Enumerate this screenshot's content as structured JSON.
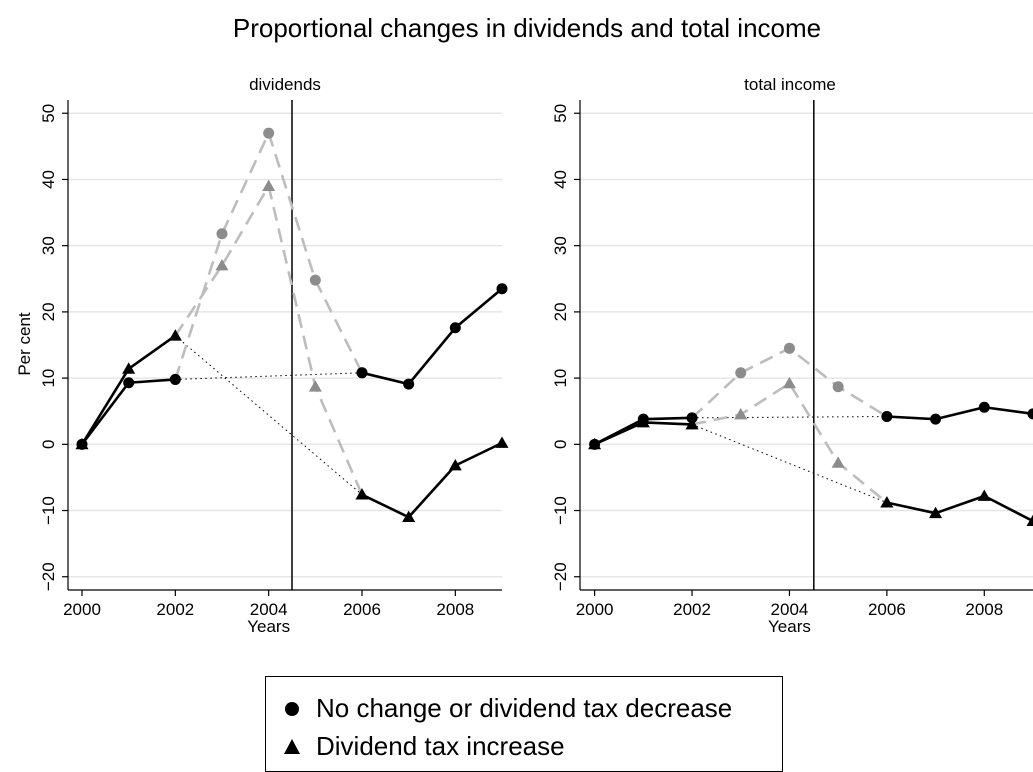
{
  "chart_data": {
    "type": "line",
    "title": "Proportional changes in dividends and total income",
    "ylabel": "Per cent",
    "xlabel": "Years",
    "xlim": [
      1999.7,
      2009.0
    ],
    "ylim": [
      -22,
      52
    ],
    "xticks": [
      2000,
      2002,
      2004,
      2006,
      2008
    ],
    "yticks": [
      -20,
      -10,
      0,
      10,
      20,
      30,
      40,
      50
    ],
    "vline": 2004.5,
    "grid": true,
    "legend_position": "bottom",
    "legend": [
      {
        "label": "No change or dividend tax decrease",
        "marker": "circle"
      },
      {
        "label": "Dividend tax increase",
        "marker": "triangle"
      }
    ],
    "panels": [
      {
        "title": "dividends",
        "series": [
          {
            "group": "No change or dividend tax decrease",
            "style": "solid",
            "points": [
              [
                2000,
                0
              ],
              [
                2001,
                9.3
              ],
              [
                2002,
                9.8
              ]
            ]
          },
          {
            "group": "No change or dividend tax decrease",
            "style": "solid",
            "points": [
              [
                2006,
                10.8
              ],
              [
                2007,
                9.1
              ],
              [
                2008,
                17.6
              ],
              [
                2009,
                23.5
              ]
            ]
          },
          {
            "group": "Dividend tax increase",
            "style": "solid",
            "points": [
              [
                2000,
                0
              ],
              [
                2001,
                11.4
              ],
              [
                2002,
                16.4
              ]
            ]
          },
          {
            "group": "Dividend tax increase",
            "style": "solid",
            "points": [
              [
                2006,
                -7.6
              ],
              [
                2007,
                -11
              ],
              [
                2008,
                -3.2
              ],
              [
                2009,
                0.2
              ]
            ]
          },
          {
            "group": "No change or dividend tax decrease",
            "style": "dashed",
            "points": [
              [
                2002,
                9.8
              ],
              [
                2003,
                31.8
              ],
              [
                2004,
                47
              ],
              [
                2005,
                24.8
              ],
              [
                2006,
                10.8
              ]
            ]
          },
          {
            "group": "Dividend tax increase",
            "style": "dashed",
            "points": [
              [
                2002,
                16.4
              ],
              [
                2003,
                27
              ],
              [
                2004,
                39
              ],
              [
                2005,
                8.7
              ],
              [
                2006,
                -7.6
              ]
            ]
          },
          {
            "group": "No change or dividend tax decrease",
            "style": "dotted",
            "points": [
              [
                2002,
                9.8
              ],
              [
                2006,
                10.8
              ]
            ]
          },
          {
            "group": "Dividend tax increase",
            "style": "dotted",
            "points": [
              [
                2002,
                16.4
              ],
              [
                2006,
                -7.6
              ]
            ]
          }
        ]
      },
      {
        "title": "total income",
        "series": [
          {
            "group": "No change or dividend tax decrease",
            "style": "solid",
            "points": [
              [
                2000,
                0
              ],
              [
                2001,
                3.8
              ],
              [
                2002,
                4
              ]
            ]
          },
          {
            "group": "No change or dividend tax decrease",
            "style": "solid",
            "points": [
              [
                2006,
                4.2
              ],
              [
                2007,
                3.8
              ],
              [
                2008,
                5.6
              ],
              [
                2009,
                4.6
              ]
            ]
          },
          {
            "group": "Dividend tax increase",
            "style": "solid",
            "points": [
              [
                2000,
                0
              ],
              [
                2001,
                3.3
              ],
              [
                2002,
                3
              ]
            ]
          },
          {
            "group": "Dividend tax increase",
            "style": "solid",
            "points": [
              [
                2006,
                -8.8
              ],
              [
                2007,
                -10.4
              ],
              [
                2008,
                -7.8
              ],
              [
                2009,
                -11.6
              ]
            ]
          },
          {
            "group": "No change or dividend tax decrease",
            "style": "dashed",
            "points": [
              [
                2002,
                4
              ],
              [
                2003,
                10.8
              ],
              [
                2004,
                14.5
              ],
              [
                2005,
                8.7
              ],
              [
                2006,
                4.2
              ]
            ]
          },
          {
            "group": "Dividend tax increase",
            "style": "dashed",
            "points": [
              [
                2002,
                3
              ],
              [
                2003,
                4.5
              ],
              [
                2004,
                9.2
              ],
              [
                2005,
                -2.8
              ],
              [
                2006,
                -8.8
              ]
            ]
          },
          {
            "group": "No change or dividend tax decrease",
            "style": "dotted",
            "points": [
              [
                2002,
                4
              ],
              [
                2006,
                4.2
              ]
            ]
          },
          {
            "group": "Dividend tax increase",
            "style": "dotted",
            "points": [
              [
                2002,
                3
              ],
              [
                2006,
                -8.8
              ]
            ]
          }
        ]
      }
    ]
  }
}
